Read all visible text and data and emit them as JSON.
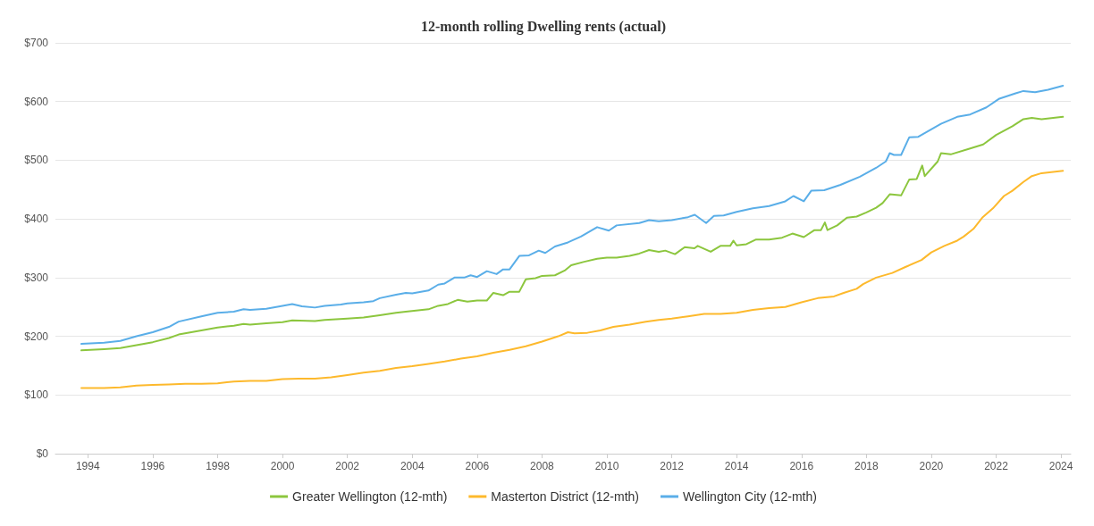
{
  "chart_data": {
    "type": "line",
    "title": "12-month rolling Dwelling rents (actual)",
    "xlim": [
      1993,
      2024.3
    ],
    "xticks": [
      1994,
      1996,
      1998,
      2000,
      2002,
      2004,
      2006,
      2008,
      2010,
      2012,
      2014,
      2016,
      2018,
      2020,
      2022,
      2024
    ],
    "ylim": [
      0,
      700
    ],
    "yticks": [
      {
        "value": 0,
        "label": "$0"
      },
      {
        "value": 100,
        "label": "$100"
      },
      {
        "value": 200,
        "label": "$200"
      },
      {
        "value": 300,
        "label": "$300"
      },
      {
        "value": 400,
        "label": "$400"
      },
      {
        "value": 500,
        "label": "$500"
      },
      {
        "value": 600,
        "label": "$600"
      },
      {
        "value": 700,
        "label": "$700"
      }
    ],
    "grid": "y",
    "legend": "bottom",
    "marker": "none",
    "line_style": "solid",
    "series": [
      {
        "name": "Greater Wellington (12-mth)",
        "color": "#8cc63e",
        "x": [
          1993.8,
          1994.5,
          1995,
          1995.5,
          1996,
          1996.5,
          1996.8,
          1997.5,
          1998,
          1998.5,
          1998.8,
          1999,
          1999.5,
          2000,
          2000.3,
          2001,
          2001.3,
          2002,
          2002.5,
          2003,
          2003.5,
          2003.8,
          2004.5,
          2004.8,
          2005.1,
          2005.4,
          2005.7,
          2006,
          2006.3,
          2006.5,
          2006.8,
          2007,
          2007.3,
          2007.5,
          2007.8,
          2008,
          2008.4,
          2008.7,
          2008.9,
          2009.3,
          2009.7,
          2010,
          2010.3,
          2010.7,
          2011,
          2011.3,
          2011.6,
          2011.8,
          2012.1,
          2012.4,
          2012.7,
          2012.8,
          2013.2,
          2013.5,
          2013.8,
          2013.9,
          2014,
          2014.3,
          2014.6,
          2015,
          2015.4,
          2015.72,
          2016.07,
          2016.4,
          2016.6,
          2016.72,
          2016.8,
          2017.1,
          2017.4,
          2017.7,
          2018,
          2018.3,
          2018.5,
          2018.72,
          2019.07,
          2019.32,
          2019.55,
          2019.72,
          2019.8,
          2020.2,
          2020.3,
          2020.6,
          2021.2,
          2021.6,
          2022,
          2022.5,
          2022.84,
          2023.1,
          2023.4,
          2024.06
        ],
        "values": [
          176,
          178,
          180,
          185,
          190,
          197,
          203,
          210,
          215,
          218,
          221,
          220,
          222,
          224,
          227,
          226,
          228,
          230,
          232,
          236,
          240,
          242,
          246,
          252,
          255,
          262,
          259,
          261,
          261,
          274,
          270,
          276,
          276,
          297,
          299,
          303,
          304,
          312,
          321,
          327,
          332,
          334,
          334,
          337,
          341,
          347,
          344,
          346,
          340,
          352,
          350,
          354,
          344,
          354,
          354,
          363,
          355,
          357,
          365,
          365,
          368,
          375,
          369,
          381,
          381,
          394,
          381,
          389,
          402,
          404,
          411,
          419,
          427,
          442,
          440,
          467,
          468,
          491,
          473,
          498,
          512,
          510,
          520,
          527,
          543,
          558,
          570,
          572,
          570,
          574
        ]
      },
      {
        "name": "Masterton District (12-mth)",
        "color": "#fdb92c",
        "x": [
          1993.8,
          1994.5,
          1995,
          1995.5,
          1996,
          1996.5,
          1997,
          1997.5,
          1998,
          1998.5,
          1999,
          1999.5,
          2000,
          2000.5,
          2001,
          2001.5,
          2002,
          2002.5,
          2003,
          2003.5,
          2004,
          2004.5,
          2005,
          2005.5,
          2006,
          2006.5,
          2007,
          2007.5,
          2008,
          2008.5,
          2008.8,
          2009,
          2009.4,
          2009.8,
          2010.2,
          2010.7,
          2011.2,
          2011.6,
          2012,
          2012.5,
          2013,
          2013.5,
          2014,
          2014.5,
          2015,
          2015.5,
          2016,
          2016.5,
          2017,
          2017.3,
          2017.7,
          2017.9,
          2018.3,
          2018.8,
          2019.2,
          2019.7,
          2020,
          2020.4,
          2020.8,
          2021,
          2021.3,
          2021.57,
          2021.9,
          2022.24,
          2022.5,
          2022.84,
          2023.1,
          2023.4,
          2024.06
        ],
        "values": [
          112,
          112,
          113,
          116,
          117,
          118,
          119,
          119,
          120,
          123,
          124,
          124,
          127,
          128,
          128,
          130,
          134,
          138,
          141,
          146,
          149,
          153,
          157,
          162,
          166,
          172,
          177,
          183,
          191,
          200,
          207,
          205,
          206,
          210,
          216,
          220,
          225,
          228,
          230,
          234,
          238,
          238,
          240,
          245,
          248,
          250,
          258,
          265,
          268,
          274,
          281,
          289,
          300,
          308,
          318,
          330,
          343,
          354,
          363,
          370,
          383,
          402,
          418,
          439,
          448,
          463,
          473,
          478,
          482
        ]
      },
      {
        "name": "Wellington City (12-mth)",
        "color": "#5aaee8",
        "x": [
          1993.8,
          1994.5,
          1995,
          1995.5,
          1996,
          1996.5,
          1996.8,
          1997.5,
          1998,
          1998.5,
          1998.8,
          1999,
          1999.5,
          2000,
          2000.3,
          2000.6,
          2001,
          2001.3,
          2001.8,
          2002,
          2002.5,
          2002.8,
          2003,
          2003.5,
          2003.8,
          2004,
          2004.5,
          2004.8,
          2005,
          2005.3,
          2005.6,
          2005.8,
          2006,
          2006.3,
          2006.6,
          2006.8,
          2007,
          2007.3,
          2007.6,
          2007.9,
          2008.1,
          2008.4,
          2008.8,
          2009.2,
          2009.7,
          2010.06,
          2010.3,
          2011,
          2011.3,
          2011.6,
          2012,
          2012.5,
          2012.71,
          2013.06,
          2013.3,
          2013.6,
          2014,
          2014.5,
          2015,
          2015.5,
          2015.75,
          2016.07,
          2016.3,
          2016.7,
          2017.2,
          2017.8,
          2018.3,
          2018.6,
          2018.72,
          2018.85,
          2019.07,
          2019.32,
          2019.6,
          2020.3,
          2020.8,
          2021.2,
          2021.7,
          2022.1,
          2022.6,
          2022.84,
          2023.2,
          2023.6,
          2024.06
        ],
        "values": [
          187,
          189,
          192,
          200,
          207,
          216,
          225,
          234,
          240,
          242,
          246,
          245,
          247,
          252,
          255,
          251,
          249,
          252,
          254,
          256,
          258,
          260,
          265,
          271,
          274,
          273,
          278,
          288,
          290,
          300,
          300,
          304,
          301,
          311,
          306,
          314,
          314,
          337,
          338,
          346,
          342,
          353,
          360,
          370,
          386,
          380,
          389,
          393,
          398,
          396,
          398,
          403,
          407,
          393,
          405,
          406,
          412,
          418,
          422,
          430,
          439,
          430,
          448,
          449,
          458,
          472,
          487,
          498,
          512,
          509,
          509,
          539,
          540,
          562,
          574,
          578,
          590,
          605,
          614,
          618,
          616,
          620,
          627
        ]
      }
    ]
  }
}
